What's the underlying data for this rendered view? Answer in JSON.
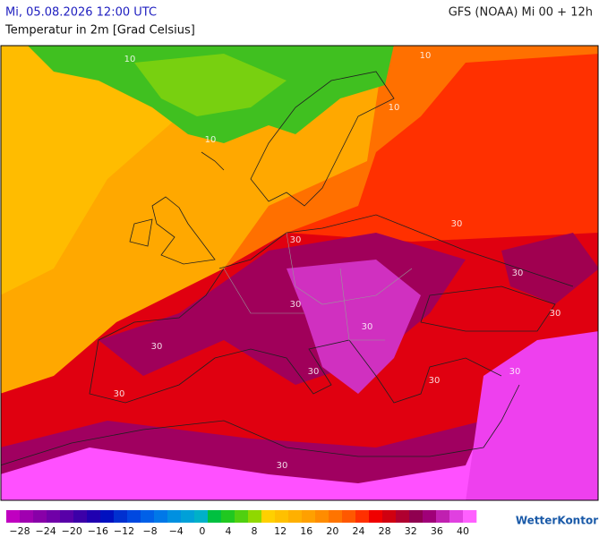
{
  "header": {
    "datetime": "Mi, 05.08.2026 12:00 UTC",
    "model": "GFS (NOAA) Mi 00 + 12h",
    "title": "Temperatur in 2m [Grad Celsius]"
  },
  "map": {
    "contour_labels": [
      "10",
      "10",
      "10",
      "10",
      "30",
      "30",
      "30",
      "30",
      "30",
      "30",
      "30",
      "30",
      "30",
      "30",
      "30",
      "30"
    ]
  },
  "legend": {
    "colors": [
      "#c000c0",
      "#a000b0",
      "#8800a8",
      "#7000a8",
      "#5800a8",
      "#3c00a8",
      "#2000b0",
      "#0010c0",
      "#0030d0",
      "#0048e0",
      "#0060e8",
      "#0078e8",
      "#0090e0",
      "#00a0d8",
      "#00b0c8",
      "#00c040",
      "#20c820",
      "#50d010",
      "#90d800",
      "#ffd000",
      "#ffc000",
      "#ffb000",
      "#ffa000",
      "#ff8c00",
      "#ff7400",
      "#ff5800",
      "#ff3000",
      "#f00000",
      "#d00010",
      "#b00030",
      "#900050",
      "#a00078",
      "#c020b0",
      "#e040e0",
      "#ff60ff"
    ],
    "labels": [
      "−28",
      "−24",
      "−20",
      "−16",
      "−12",
      "−8",
      "−4",
      "0",
      "4",
      "8",
      "12",
      "16",
      "20",
      "24",
      "28",
      "32",
      "36",
      "40"
    ]
  },
  "logo": "WetterKontor"
}
